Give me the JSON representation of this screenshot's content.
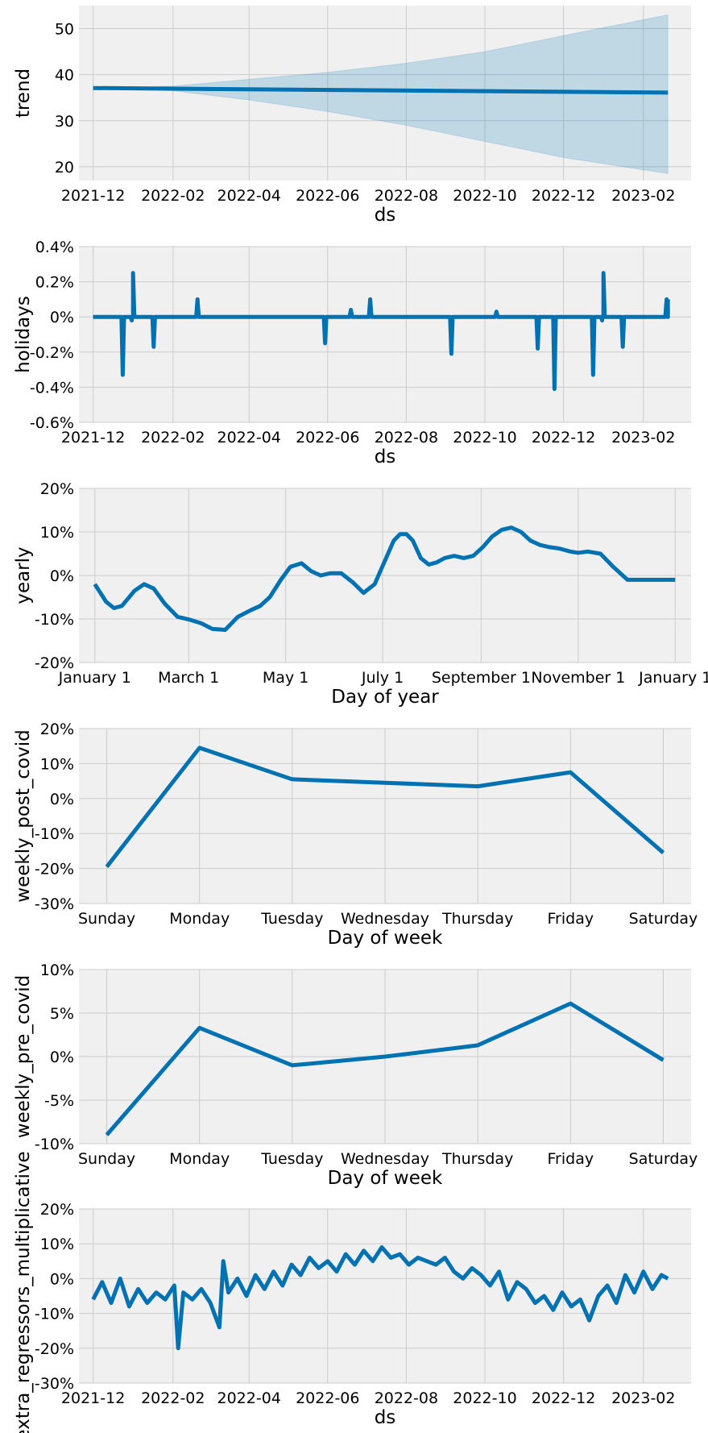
{
  "chart_data": [
    {
      "id": "trend",
      "type": "line",
      "xlabel": "ds",
      "ylabel": "trend",
      "x_type": "date",
      "xlim": [
        "2021-11-20",
        "2023-03-10"
      ],
      "ylim": [
        17,
        55
      ],
      "x_ticks": [
        "2021-12-01",
        "2022-02-01",
        "2022-04-01",
        "2022-06-01",
        "2022-08-01",
        "2022-10-01",
        "2022-12-01",
        "2023-02-01"
      ],
      "x_tick_labels": [
        "2021-12",
        "2022-02",
        "2022-04",
        "2022-06",
        "2022-08",
        "2022-10",
        "2022-12",
        "2023-02"
      ],
      "y_ticks": [
        20,
        30,
        40,
        50
      ],
      "y_tick_labels": [
        "20",
        "30",
        "40",
        "50"
      ],
      "series": [
        {
          "x": [
            "2021-12-01",
            "2023-02-20"
          ],
          "y": [
            37.1,
            36.1
          ]
        }
      ],
      "band": {
        "x": [
          "2021-12-01",
          "2022-02-01",
          "2022-04-01",
          "2022-06-01",
          "2022-08-01",
          "2022-10-01",
          "2022-12-01",
          "2023-02-20"
        ],
        "lower": [
          37.1,
          36.5,
          34.5,
          32.0,
          29.0,
          25.5,
          22.0,
          18.5
        ],
        "upper": [
          37.1,
          37.5,
          39.0,
          40.5,
          42.5,
          45.0,
          48.5,
          53.0
        ]
      },
      "grid": true
    },
    {
      "id": "holidays",
      "type": "line",
      "xlabel": "ds",
      "ylabel": "holidays",
      "x_type": "date",
      "xlim": [
        "2021-11-20",
        "2023-03-10"
      ],
      "ylim": [
        -0.6,
        0.4
      ],
      "x_ticks": [
        "2021-12-01",
        "2022-02-01",
        "2022-04-01",
        "2022-06-01",
        "2022-08-01",
        "2022-10-01",
        "2022-12-01",
        "2023-02-01"
      ],
      "x_tick_labels": [
        "2021-12",
        "2022-02",
        "2022-04",
        "2022-06",
        "2022-08",
        "2022-10",
        "2022-12",
        "2023-02"
      ],
      "y_ticks": [
        -0.6,
        -0.4,
        -0.2,
        0,
        0.2,
        0.4
      ],
      "y_tick_labels": [
        "-0.6%",
        "-0.4%",
        "-0.2%",
        "0%",
        "0.2%",
        "0.4%"
      ],
      "baseline": {
        "x": [
          "2021-12-01",
          "2023-02-20"
        ],
        "y": 0
      },
      "spikes": [
        {
          "x": "2021-12-24",
          "y": -0.33
        },
        {
          "x": "2021-12-31",
          "y": -0.02
        },
        {
          "x": "2022-01-01",
          "y": 0.25
        },
        {
          "x": "2022-01-17",
          "y": -0.17
        },
        {
          "x": "2022-02-20",
          "y": 0.1
        },
        {
          "x": "2022-05-30",
          "y": -0.15
        },
        {
          "x": "2022-06-19",
          "y": 0.04
        },
        {
          "x": "2022-07-04",
          "y": 0.1
        },
        {
          "x": "2022-09-05",
          "y": -0.21
        },
        {
          "x": "2022-10-10",
          "y": 0.03
        },
        {
          "x": "2022-11-11",
          "y": -0.18
        },
        {
          "x": "2022-11-24",
          "y": -0.41
        },
        {
          "x": "2022-12-24",
          "y": -0.33
        },
        {
          "x": "2022-12-31",
          "y": -0.02
        },
        {
          "x": "2023-01-01",
          "y": 0.25
        },
        {
          "x": "2023-01-16",
          "y": -0.17
        },
        {
          "x": "2023-02-19",
          "y": 0.1
        }
      ],
      "grid": true
    },
    {
      "id": "yearly",
      "type": "line",
      "xlabel": "Day of year",
      "ylabel": "yearly",
      "x_type": "day_of_year",
      "xlim": [
        -10,
        375
      ],
      "ylim": [
        -20,
        20
      ],
      "x_ticks": [
        0,
        59,
        120,
        181,
        243,
        304,
        365
      ],
      "x_tick_labels": [
        "January 1",
        "March 1",
        "May 1",
        "July 1",
        "September 1",
        "November 1",
        "January 1"
      ],
      "y_ticks": [
        -20,
        -10,
        0,
        10,
        20
      ],
      "y_tick_labels": [
        "-20%",
        "-10%",
        "0%",
        "10%",
        "20%"
      ],
      "series": [
        {
          "x": [
            0,
            7,
            12,
            17,
            25,
            31,
            37,
            44,
            52,
            60,
            67,
            74,
            82,
            90,
            98,
            104,
            110,
            117,
            123,
            130,
            136,
            142,
            148,
            155,
            162,
            169,
            176,
            182,
            188,
            192,
            196,
            200,
            205,
            210,
            215,
            220,
            226,
            232,
            238,
            244,
            250,
            256,
            262,
            268,
            274,
            280,
            286,
            292,
            299,
            304,
            310,
            318,
            326,
            335,
            342,
            350,
            357,
            362,
            365
          ],
          "y": [
            -2,
            -6,
            -7.5,
            -7,
            -3.5,
            -2,
            -3,
            -6.5,
            -9.5,
            -10.2,
            -11,
            -12.3,
            -12.5,
            -9.5,
            -8,
            -7,
            -5,
            -1,
            2,
            2.8,
            1,
            0,
            0.5,
            0.5,
            -1.5,
            -4,
            -2,
            3,
            8,
            9.5,
            9.5,
            8,
            4,
            2.5,
            3,
            4,
            4.5,
            4,
            4.5,
            6.5,
            9,
            10.5,
            11,
            10,
            8,
            7,
            6.5,
            6.2,
            5.5,
            5.2,
            5.5,
            5,
            2,
            -1,
            -1,
            -1,
            -1,
            -1,
            -1
          ]
        }
      ],
      "grid": true
    },
    {
      "id": "weekly_post_covid",
      "type": "line",
      "xlabel": "Day of week",
      "ylabel": "weekly_post_covid",
      "x_type": "category_index",
      "xlim": [
        -0.3,
        6.3
      ],
      "ylim": [
        -30,
        20
      ],
      "x_ticks": [
        0,
        1,
        2,
        3,
        4,
        5,
        6
      ],
      "x_tick_labels": [
        "Sunday",
        "Monday",
        "Tuesday",
        "Wednesday",
        "Thursday",
        "Friday",
        "Saturday"
      ],
      "y_ticks": [
        -30,
        -20,
        -10,
        0,
        10,
        20
      ],
      "y_tick_labels": [
        "-30%",
        "-20%",
        "-10%",
        "0%",
        "10%",
        "20%"
      ],
      "series": [
        {
          "x": [
            0,
            1,
            2,
            3,
            4,
            5,
            6
          ],
          "y": [
            -19.5,
            14.5,
            5.5,
            4.5,
            3.5,
            7.5,
            -15.5
          ]
        }
      ],
      "grid": true
    },
    {
      "id": "weekly_pre_covid",
      "type": "line",
      "xlabel": "Day of week",
      "ylabel": "weekly_pre_covid",
      "x_type": "category_index",
      "xlim": [
        -0.3,
        6.3
      ],
      "ylim": [
        -10,
        10
      ],
      "x_ticks": [
        0,
        1,
        2,
        3,
        4,
        5,
        6
      ],
      "x_tick_labels": [
        "Sunday",
        "Monday",
        "Tuesday",
        "Wednesday",
        "Thursday",
        "Friday",
        "Saturday"
      ],
      "y_ticks": [
        -10,
        -5,
        0,
        5,
        10
      ],
      "y_tick_labels": [
        "-10%",
        "-5%",
        "0%",
        "5%",
        "10%"
      ],
      "series": [
        {
          "x": [
            0,
            1,
            2,
            3,
            4,
            5,
            6
          ],
          "y": [
            -9,
            3.3,
            -1,
            0,
            1.3,
            6.1,
            -0.4
          ]
        }
      ],
      "grid": true
    },
    {
      "id": "extra_regressors_multiplicative",
      "type": "line",
      "xlabel": "ds",
      "ylabel": "extra_regressors_multiplicative",
      "x_type": "date",
      "xlim": [
        "2021-11-20",
        "2023-03-10"
      ],
      "ylim": [
        -30,
        20
      ],
      "x_ticks": [
        "2021-12-01",
        "2022-02-01",
        "2022-04-01",
        "2022-06-01",
        "2022-08-01",
        "2022-10-01",
        "2022-12-01",
        "2023-02-01"
      ],
      "x_tick_labels": [
        "2021-12",
        "2022-02",
        "2022-04",
        "2022-06",
        "2022-08",
        "2022-10",
        "2022-12",
        "2023-02"
      ],
      "y_ticks": [
        -30,
        -20,
        -10,
        0,
        10,
        20
      ],
      "y_tick_labels": [
        "-30%",
        "-20%",
        "-10%",
        "0%",
        "10%",
        "20%"
      ],
      "series": [
        {
          "x": [
            "2021-12-01",
            "2021-12-08",
            "2021-12-15",
            "2021-12-22",
            "2021-12-29",
            "2022-01-05",
            "2022-01-12",
            "2022-01-19",
            "2022-01-26",
            "2022-02-02",
            "2022-02-05",
            "2022-02-09",
            "2022-02-16",
            "2022-02-23",
            "2022-03-02",
            "2022-03-09",
            "2022-03-12",
            "2022-03-16",
            "2022-03-23",
            "2022-03-30",
            "2022-04-06",
            "2022-04-13",
            "2022-04-20",
            "2022-04-27",
            "2022-05-04",
            "2022-05-11",
            "2022-05-18",
            "2022-05-25",
            "2022-06-01",
            "2022-06-08",
            "2022-06-15",
            "2022-06-22",
            "2022-06-29",
            "2022-07-06",
            "2022-07-13",
            "2022-07-20",
            "2022-07-27",
            "2022-08-03",
            "2022-08-10",
            "2022-08-17",
            "2022-08-24",
            "2022-08-31",
            "2022-09-07",
            "2022-09-14",
            "2022-09-21",
            "2022-09-28",
            "2022-10-05",
            "2022-10-12",
            "2022-10-19",
            "2022-10-26",
            "2022-11-02",
            "2022-11-09",
            "2022-11-16",
            "2022-11-23",
            "2022-11-30",
            "2022-12-07",
            "2022-12-14",
            "2022-12-21",
            "2022-12-28",
            "2023-01-04",
            "2023-01-11",
            "2023-01-18",
            "2023-01-25",
            "2023-02-01",
            "2023-02-08",
            "2023-02-15",
            "2023-02-20"
          ],
          "y": [
            -6,
            -1,
            -7,
            0,
            -8,
            -3,
            -7,
            -4,
            -6,
            -2,
            -20,
            -4,
            -6,
            -3,
            -7,
            -14,
            5,
            -4,
            0,
            -5,
            1,
            -3,
            2,
            -2,
            4,
            1,
            6,
            3,
            5,
            2,
            7,
            4,
            8,
            5,
            9,
            6,
            7,
            4,
            6,
            5,
            4,
            6,
            2,
            0,
            3,
            1,
            -2,
            2,
            -6,
            -1,
            -3,
            -7,
            -5,
            -9,
            -4,
            -8,
            -6,
            -12,
            -5,
            -2,
            -7,
            1,
            -4,
            2,
            -3,
            1,
            0
          ]
        }
      ],
      "grid": true
    }
  ]
}
